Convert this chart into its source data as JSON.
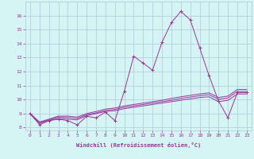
{
  "x": [
    0,
    1,
    2,
    3,
    4,
    5,
    6,
    7,
    8,
    9,
    10,
    11,
    12,
    13,
    14,
    15,
    16,
    17,
    18,
    19,
    20,
    21,
    22,
    23
  ],
  "line1": [
    9.0,
    8.2,
    8.5,
    8.6,
    8.5,
    8.2,
    8.8,
    8.7,
    9.1,
    8.5,
    10.6,
    13.1,
    12.6,
    12.1,
    14.1,
    15.5,
    16.3,
    15.7,
    13.7,
    11.7,
    9.9,
    8.7,
    10.5,
    10.5
  ],
  "line2": [
    9.0,
    8.3,
    8.5,
    8.65,
    8.6,
    8.55,
    8.85,
    9.0,
    9.15,
    9.2,
    9.35,
    9.45,
    9.55,
    9.65,
    9.75,
    9.85,
    9.95,
    10.05,
    10.15,
    10.2,
    9.85,
    9.95,
    10.4,
    10.4
  ],
  "line3": [
    9.0,
    8.35,
    8.55,
    8.75,
    8.72,
    8.65,
    8.92,
    9.05,
    9.22,
    9.3,
    9.45,
    9.55,
    9.65,
    9.75,
    9.85,
    9.95,
    10.08,
    10.18,
    10.28,
    10.35,
    10.02,
    10.12,
    10.58,
    10.58
  ],
  "line4": [
    9.0,
    8.4,
    8.6,
    8.82,
    8.82,
    8.75,
    9.0,
    9.15,
    9.32,
    9.4,
    9.55,
    9.65,
    9.75,
    9.85,
    9.95,
    10.08,
    10.2,
    10.3,
    10.4,
    10.48,
    10.15,
    10.25,
    10.72,
    10.72
  ],
  "line_color": "#993399",
  "bg_color": "#d5f5f5",
  "grid_color": "#b0c8d8",
  "xlabel": "Windchill (Refroidissement éolien,°C)",
  "ylim": [
    7.8,
    17.0
  ],
  "xlim": [
    -0.5,
    23.5
  ],
  "yticks": [
    8,
    9,
    10,
    11,
    12,
    13,
    14,
    15,
    16
  ],
  "xticks": [
    0,
    1,
    2,
    3,
    4,
    5,
    6,
    7,
    8,
    9,
    10,
    11,
    12,
    13,
    14,
    15,
    16,
    17,
    18,
    19,
    20,
    21,
    22,
    23
  ]
}
